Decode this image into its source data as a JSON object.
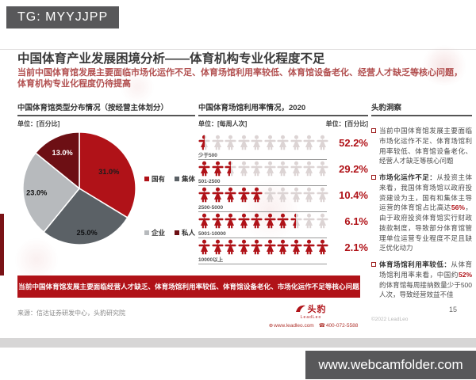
{
  "overlay": {
    "top_badge": "TG: MYYJJPP",
    "bottom_badge": "www.webcamfolder.com"
  },
  "icons": {
    "globe": "⊕",
    "phone": "☎"
  },
  "slide": {
    "title": "中国体育产业发展困境分析——体育机构专业化程度不足",
    "subtitle": "当前中国体育馆发展主要面临市场化运作不足、体育场馆利用率较低、体育馆设备老化、经营人才缺乏等核心问题，体育机构专业化程度仍待提高",
    "banner": "当前中国体育馆发展主要面临经营人才缺乏、体育场馆利用率较低、体育馆设备老化、市场化运作不足等核心问题",
    "source": "来源：信达证券研发中心，头豹研究院",
    "copyright": "©2022 LeadLeo",
    "page_number": "15",
    "logo": {
      "name": "头豹",
      "sub": "LeadLeo",
      "site": "www.leadleo.com",
      "phone": "400-072-5588"
    },
    "insight": {
      "header": "头豹洞察",
      "bullets": [
        [
          {
            "t": "当前中国体育馆发展主要面临市场化运作不足、体育场馆利用率较低、体育馆设备老化、经营人才缺乏等核心问题"
          }
        ],
        [
          {
            "t": "市场化运作不足：",
            "b": true
          },
          {
            "t": "从投资主体来看，我国体育场馆以政府投资建设为主，国有和集体主导运营的体育馆占比高达"
          },
          {
            "t": "56%",
            "r": true
          },
          {
            "t": "，由于政府投资体育馆实行财政拨款制度，导致部分体育馆管理单位运营专业程度不足且缺乏优化动力"
          }
        ],
        [
          {
            "t": "体育场馆利用率较低：",
            "b": true
          },
          {
            "t": "从体育场馆利用率来看，中国约"
          },
          {
            "t": "52%",
            "r": true
          },
          {
            "t": "的体育馆每周接纳数量少于500人次，导致经营效益不佳"
          }
        ]
      ]
    }
  },
  "chart_data": [
    {
      "type": "pie",
      "title": "中国体育馆类型分布情况（按经营主体划分）",
      "unit": "单位：[百分比]",
      "labels": [
        "国有",
        "集体",
        "企业",
        "私人"
      ],
      "values": [
        31.0,
        25.0,
        23.0,
        13.0
      ],
      "value_labels": [
        "31.0%",
        "25.0%",
        "23.0%",
        "13.0%"
      ],
      "colors": [
        "#b01218",
        "#5b6166",
        "#b7babd",
        "#6d0f14"
      ],
      "label_colors": [
        "#1c1c1c",
        "#0f1012",
        "#141414",
        "#ffffff"
      ],
      "label_radius": [
        0.6,
        0.8,
        0.76,
        0.7
      ],
      "start_angle_deg": 0,
      "direction": "clockwise",
      "legend_position": "right"
    },
    {
      "type": "pictogram",
      "title": "中国体育场馆利用率情况，2020",
      "unit_left": "单位：[每周人次]",
      "unit_right": "单位：[百分比]",
      "categories": [
        "少于500",
        "501-2500",
        "2500-5000",
        "5001-10000",
        "10000以上"
      ],
      "values": [
        52.2,
        29.2,
        10.4,
        6.1,
        2.1
      ],
      "value_labels": [
        "52.2%",
        "29.2%",
        "10.4%",
        "6.1%",
        "2.1%"
      ],
      "icons_filled": [
        0.5,
        2.5,
        5,
        7.5,
        10
      ],
      "icons_total": 10,
      "icon_fill_color": "#b01218",
      "icon_empty_color": "#dcd4d4"
    }
  ]
}
